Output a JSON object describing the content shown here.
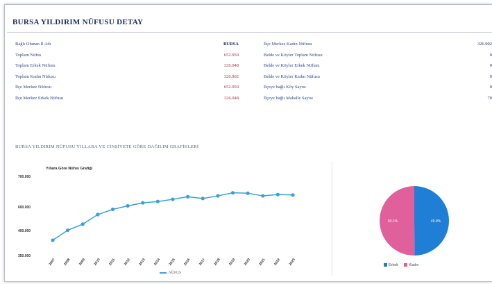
{
  "title": "BURSA YILDIRIM NÜFUSU DETAY",
  "left_info": [
    {
      "label": "Bağlı Olunan İl Adı",
      "value": "BURSA",
      "bold": true
    },
    {
      "label": "Toplam Nüfus",
      "value": "652.950"
    },
    {
      "label": "Toplam Erkek Nüfusu",
      "value": "326.048"
    },
    {
      "label": "Toplam Kadın Nüfusu",
      "value": "326.902"
    },
    {
      "label": "İlçe Merkez Nüfusu",
      "value": "652.950"
    },
    {
      "label": "İlçe Merkez Erkek Nüfusu",
      "value": "326.048"
    }
  ],
  "right_info": [
    {
      "label": "İlçe Merkez Kadın Nüfusu",
      "value": "326.902"
    },
    {
      "label": "Belde ve Köyler Toplam Nüfusu",
      "value": "0"
    },
    {
      "label": "Belde ve Köyler Erkek Nüfusu",
      "value": "0"
    },
    {
      "label": "Belde ve Köyler Kadın Nüfusu",
      "value": "0"
    },
    {
      "label": "İlçeye bağlı Köy Sayısı",
      "value": "0"
    },
    {
      "label": "İlçeye bağlı Mahalle Sayısı",
      "value": "70"
    }
  ],
  "section_title": "BURSA YILDIRIM NÜFUSU YILLARA VE CİNSİYETE GÖRE DAĞILIM GRAFİKLERİ",
  "colors": {
    "line": "#3c9ed8",
    "male": "#1f7fd6",
    "female": "#e0609c"
  },
  "chart_data": [
    {
      "type": "line",
      "title": "Yıllara Göre Nüfus Grafiği",
      "x": [
        "2007",
        "2008",
        "2009",
        "2010",
        "2011",
        "2012",
        "2013",
        "2014",
        "2015",
        "2016",
        "2017",
        "2018",
        "2019",
        "2020",
        "2021",
        "2022",
        "2023"
      ],
      "series": [
        {
          "name": "NÜFUS",
          "values": [
            566000,
            589000,
            603000,
            625000,
            637000,
            645000,
            652000,
            655000,
            660000,
            666000,
            662000,
            668000,
            675000,
            674000,
            668000,
            671000,
            670000
          ]
        }
      ],
      "yticks": [
        "700.000",
        "600.000",
        "400.000",
        "350.000"
      ],
      "ylim": [
        550000,
        700000
      ]
    },
    {
      "type": "pie",
      "slices": [
        {
          "name": "Erkek",
          "value": 49.9,
          "label": "49.9%"
        },
        {
          "name": "Kadın",
          "value": 50.1,
          "label": "50.1%"
        }
      ]
    }
  ]
}
